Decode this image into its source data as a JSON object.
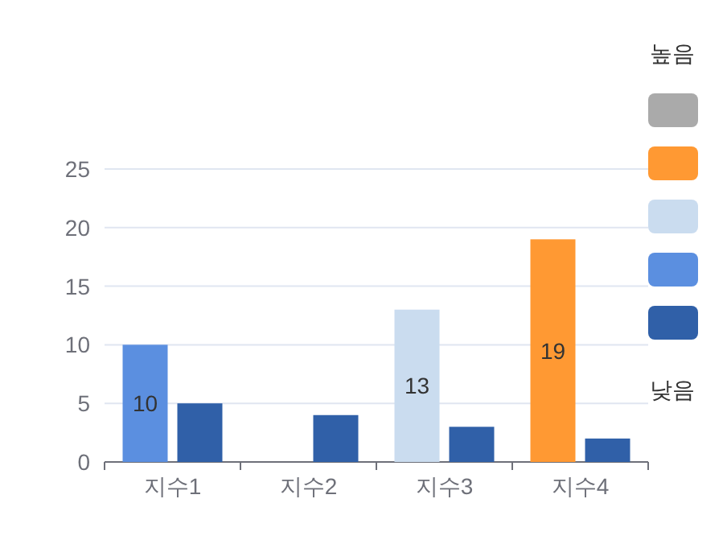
{
  "chart_data": {
    "type": "bar",
    "categories": [
      "지수1",
      "지수2",
      "지수3",
      "지수4"
    ],
    "series": [
      {
        "colors": [
          "#5b8fe0",
          null,
          "#cadcef",
          "#ff9933"
        ],
        "values": [
          10,
          null,
          13,
          19
        ],
        "value_labels": [
          "10",
          null,
          "13",
          "19"
        ]
      },
      {
        "color": "#3060a8",
        "values": [
          5,
          4,
          3,
          2
        ]
      }
    ],
    "ylim": [
      0,
      25
    ],
    "yticks": [
      0,
      5,
      10,
      15,
      20,
      25
    ],
    "grid": "y",
    "annotations": [
      "높음",
      "낮음"
    ]
  }
}
